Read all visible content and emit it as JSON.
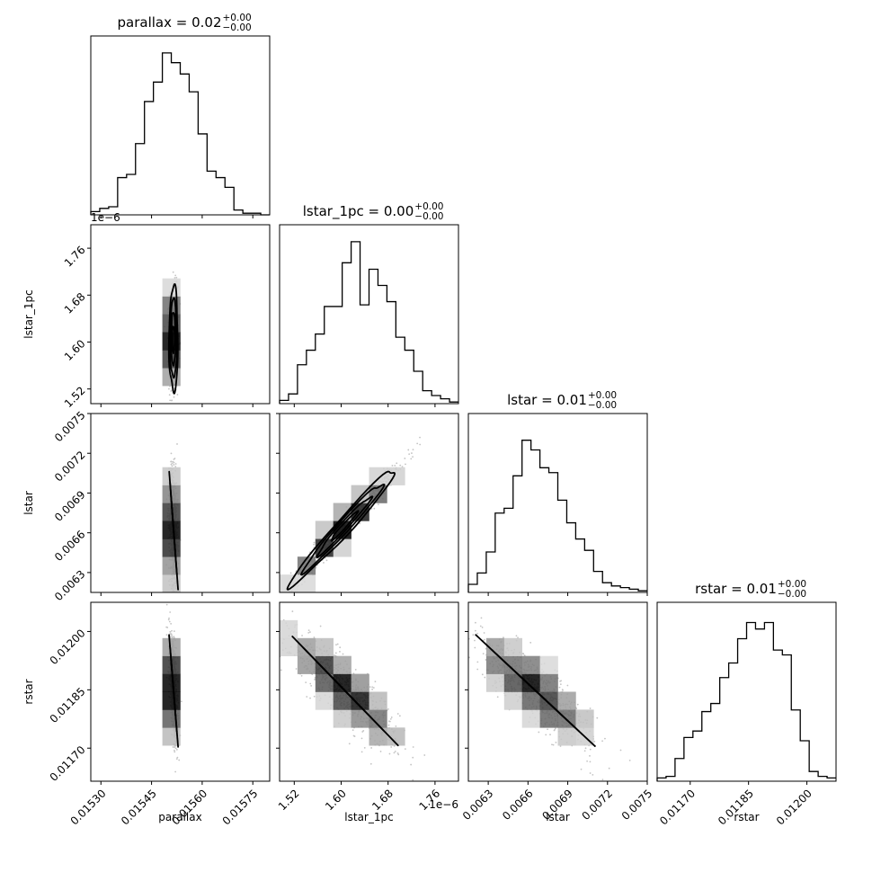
{
  "chart_data": {
    "type": "corner",
    "params": [
      {
        "key": "parallax",
        "label": "parallax",
        "range": [
          0.01527,
          0.0158
        ],
        "ticks": [
          "0.01530",
          "0.01545",
          "0.01560",
          "0.01575"
        ],
        "tick_values": [
          0.0153,
          0.01545,
          0.0156,
          0.01575
        ],
        "scale": null,
        "tick_prefix": "",
        "offset_text": ""
      },
      {
        "key": "lstar_1pc",
        "label": "lstar_1pc",
        "range": [
          1.495,
          1.8
        ],
        "ticks": [
          "1.52",
          "1.60",
          "1.68",
          "1.76"
        ],
        "tick_values": [
          1.52,
          1.6,
          1.68,
          1.76
        ],
        "scale": "1e−6",
        "tick_prefix": "",
        "offset_text": "1e−6"
      },
      {
        "key": "lstar",
        "label": "lstar",
        "range": [
          0.00615,
          0.0075
        ],
        "ticks": [
          "0.0063",
          "0.0066",
          "0.0069",
          "0.0072",
          "0.0075"
        ],
        "tick_values": [
          0.0063,
          0.0066,
          0.0069,
          0.0072,
          0.0075
        ],
        "scale": null,
        "tick_prefix": "",
        "offset_text": ""
      },
      {
        "key": "rstar",
        "label": "rstar",
        "range": [
          0.011615,
          0.012075
        ],
        "ticks": [
          "0.01170",
          "0.01185",
          "0.01200"
        ],
        "tick_values": [
          0.0117,
          0.01185,
          0.012
        ],
        "scale": null,
        "tick_prefix": "",
        "offset_text": ""
      }
    ],
    "titles": [
      {
        "name": "parallax",
        "value": "0.02",
        "plus": "+0.00",
        "minus": "−0.00"
      },
      {
        "name": "lstar_1pc",
        "value": "0.00",
        "plus": "+0.00",
        "minus": "−0.00"
      },
      {
        "name": "lstar",
        "value": "0.01",
        "plus": "+0.00",
        "minus": "−0.00"
      },
      {
        "name": "rstar",
        "value": "0.01",
        "plus": "+0.00",
        "minus": "−0.00"
      }
    ],
    "histograms": [
      {
        "param": "parallax",
        "bins": 20,
        "counts": [
          0.02,
          0.04,
          0.05,
          0.23,
          0.25,
          0.44,
          0.7,
          0.82,
          1.0,
          0.94,
          0.87,
          0.76,
          0.5,
          0.27,
          0.23,
          0.17,
          0.03,
          0.01,
          0.01,
          0.0
        ]
      },
      {
        "param": "lstar_1pc",
        "bins": 20,
        "counts": [
          0.02,
          0.06,
          0.24,
          0.33,
          0.43,
          0.6,
          0.6,
          0.87,
          1.0,
          0.61,
          0.83,
          0.73,
          0.63,
          0.41,
          0.33,
          0.2,
          0.08,
          0.05,
          0.03,
          0.01
        ]
      },
      {
        "param": "lstar",
        "bins": 20,
        "counts": [
          0.05,
          0.12,
          0.25,
          0.49,
          0.52,
          0.72,
          0.94,
          0.88,
          0.77,
          0.74,
          0.57,
          0.43,
          0.33,
          0.26,
          0.13,
          0.06,
          0.04,
          0.03,
          0.02,
          0.01
        ]
      },
      {
        "param": "rstar",
        "bins": 20,
        "counts": [
          0.02,
          0.03,
          0.14,
          0.27,
          0.31,
          0.43,
          0.48,
          0.64,
          0.73,
          0.88,
          0.98,
          0.94,
          0.98,
          0.81,
          0.78,
          0.44,
          0.25,
          0.06,
          0.03,
          0.02
        ]
      }
    ],
    "pairs": [
      {
        "x": "parallax",
        "y": "lstar_1pc",
        "correlation": 0.0,
        "center": [
          0.015515,
          1.605
        ],
        "sd": [
          6.5e-06,
          0.045
        ]
      },
      {
        "x": "parallax",
        "y": "lstar",
        "correlation": -0.25,
        "center": [
          0.015515,
          0.00663
        ],
        "sd": [
          6.5e-06,
          0.00022
        ]
      },
      {
        "x": "lstar_1pc",
        "y": "lstar",
        "correlation": 0.98,
        "center": [
          1.605,
          0.00665
        ],
        "sd": [
          0.045,
          0.00022
        ]
      },
      {
        "x": "parallax",
        "y": "rstar",
        "correlation": -0.6,
        "center": [
          0.015515,
          0.01185
        ],
        "sd": [
          6.5e-06,
          7e-05
        ]
      },
      {
        "x": "lstar_1pc",
        "y": "rstar",
        "correlation": -0.85,
        "center": [
          1.605,
          0.01185
        ],
        "sd": [
          0.045,
          7e-05
        ]
      },
      {
        "x": "lstar",
        "y": "rstar",
        "correlation": -0.85,
        "center": [
          0.00665,
          0.01185
        ],
        "sd": [
          0.00022,
          7e-05
        ]
      }
    ],
    "grid": false,
    "legend": "none"
  }
}
